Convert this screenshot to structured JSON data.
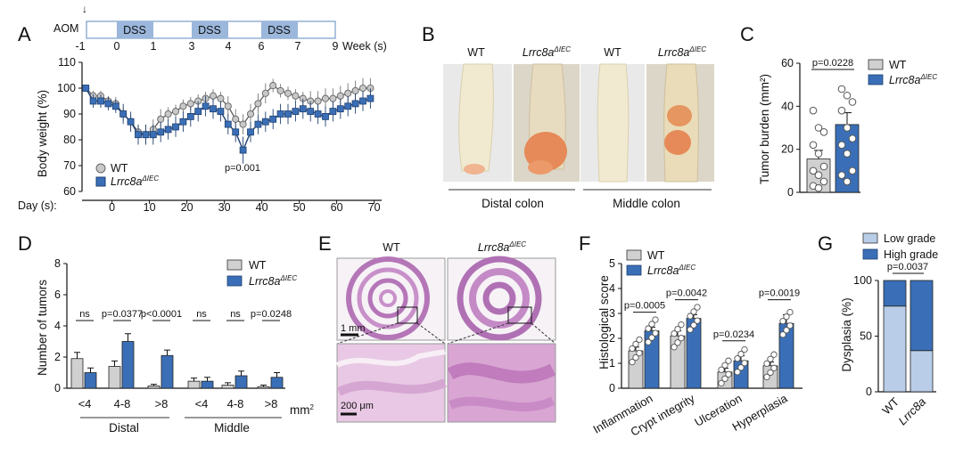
{
  "colors": {
    "wt": "#d0d0d0",
    "ko": "#3a6fb7",
    "wt_pt": "#b8b8b8",
    "ko_pt": "#3a6fb7",
    "dss": "#9bb7db",
    "low": "#b9cde8",
    "high": "#3a6fb7",
    "tissue_bg": "#f2f2f2"
  },
  "panels": {
    "A": "A",
    "B": "B",
    "C": "C",
    "D": "D",
    "E": "E",
    "F": "F",
    "G": "G"
  },
  "schedule": {
    "aom": "AOM",
    "dss": "DSS",
    "week_ticks": [
      "-1",
      "0",
      "1",
      "3",
      "4",
      "6",
      "7",
      "9"
    ],
    "week_label": "Week (s)"
  },
  "legend": {
    "wt": "WT",
    "ko": "Lrrc8a",
    "ko_sup": "ΔIEC"
  },
  "chart_data": [
    {
      "panel": "A",
      "type": "line",
      "ylabel": "Body weight (%)",
      "xlabel": "Day (s):",
      "ylim": [
        60,
        110
      ],
      "yticks": [
        "60",
        "70",
        "80",
        "90",
        "100",
        "110"
      ],
      "xlim": [
        -8,
        72
      ],
      "xticks": [
        "0",
        "10",
        "20",
        "30",
        "40",
        "50",
        "60",
        "70"
      ],
      "xtick_values": [
        0,
        10,
        20,
        30,
        40,
        50,
        60,
        70
      ],
      "annotation": "p=0.001",
      "series": [
        {
          "name": "WT",
          "x": [
            -7,
            -5,
            -3,
            -1,
            1,
            3,
            5,
            7,
            9,
            11,
            13,
            15,
            17,
            19,
            21,
            23,
            25,
            27,
            29,
            31,
            33,
            35,
            37,
            39,
            41,
            43,
            45,
            47,
            49,
            51,
            53,
            55,
            57,
            59,
            61,
            63,
            65,
            67,
            69
          ],
          "y": [
            100,
            97,
            97,
            95,
            94,
            90,
            87,
            83,
            82,
            84,
            88,
            90,
            91,
            93,
            94,
            95,
            96,
            97,
            96,
            93,
            88,
            86,
            90,
            94,
            98,
            101,
            99,
            98,
            97,
            96,
            95,
            95,
            96,
            96,
            97,
            98,
            99,
            100,
            100
          ],
          "err": [
            1,
            1.5,
            1.5,
            1.5,
            2,
            2,
            2,
            2,
            3,
            3,
            3,
            2,
            2,
            2,
            2,
            2,
            2,
            2,
            2,
            3,
            3,
            3,
            3,
            3,
            3,
            2,
            2,
            2,
            2,
            2,
            3,
            3,
            3,
            3,
            3,
            3,
            3,
            3,
            3
          ]
        },
        {
          "name": "Lrrc8a",
          "x": [
            -7,
            -5,
            -3,
            -1,
            1,
            3,
            5,
            7,
            9,
            11,
            13,
            15,
            17,
            19,
            21,
            23,
            25,
            27,
            29,
            31,
            33,
            35,
            37,
            39,
            41,
            43,
            45,
            47,
            49,
            51,
            53,
            55,
            57,
            59,
            61,
            63,
            65,
            67,
            69
          ],
          "y": [
            100,
            95,
            95,
            94,
            93,
            90,
            87,
            82,
            82,
            82,
            83,
            84,
            85,
            87,
            89,
            91,
            93,
            92,
            91,
            86,
            83,
            76,
            83,
            86,
            87,
            88,
            90,
            90,
            91,
            92,
            91,
            90,
            89,
            91,
            92,
            93,
            94,
            95,
            96
          ],
          "err": [
            1,
            2,
            2,
            2,
            2,
            3,
            3,
            3,
            3,
            3,
            3,
            3,
            3,
            3,
            3,
            3,
            3,
            3,
            3,
            3,
            3,
            4,
            3,
            3,
            3,
            3,
            3,
            3,
            3,
            3,
            3,
            3,
            3,
            3,
            3,
            3,
            3,
            3,
            3
          ]
        }
      ]
    },
    {
      "panel": "C",
      "type": "bar",
      "ylabel": "Tumor burden (mm²)",
      "ylim": [
        0,
        60
      ],
      "yticks": [
        "0",
        "20",
        "40",
        "60"
      ],
      "categories": [
        "WT",
        "Lrrc8a"
      ],
      "values": [
        15.5,
        31.5
      ],
      "err": [
        4,
        5.5
      ],
      "points": [
        [
          38,
          30,
          28,
          22,
          18,
          12,
          10,
          8,
          5,
          3,
          2
        ],
        [
          48,
          45,
          42,
          38,
          30,
          25,
          22,
          18,
          10,
          8,
          5
        ]
      ],
      "annotation": "p=0.0228"
    },
    {
      "panel": "D",
      "type": "bar",
      "ylabel": "Number of tumors",
      "ylim": [
        0,
        8
      ],
      "yticks": [
        "0",
        "2",
        "4",
        "6",
        "8"
      ],
      "categories": [
        "<4",
        "4-8",
        ">8",
        "<4",
        "4-8",
        ">8"
      ],
      "groups": [
        "Distal",
        "Middle"
      ],
      "unit": "mm",
      "unit_sup": "2",
      "series": [
        {
          "name": "WT",
          "values": [
            1.9,
            1.4,
            0.15,
            0.45,
            0.2,
            0.1
          ],
          "err": [
            0.4,
            0.35,
            0.1,
            0.2,
            0.15,
            0.1
          ]
        },
        {
          "name": "Lrrc8a",
          "values": [
            1.0,
            3.0,
            2.1,
            0.45,
            0.8,
            0.7
          ],
          "err": [
            0.3,
            0.5,
            0.35,
            0.25,
            0.3,
            0.3
          ]
        }
      ],
      "pvalues": [
        "ns",
        "p=0.0377",
        "p<0.0001",
        "ns",
        "ns",
        "p=0.0248"
      ]
    },
    {
      "panel": "F",
      "type": "bar",
      "ylabel": "Histological score",
      "ylim": [
        0,
        5
      ],
      "yticks": [
        "0",
        "1",
        "2",
        "3",
        "4",
        "5"
      ],
      "categories": [
        "Inflammation",
        "Crypt integrity",
        "Ulceration",
        "Hyperplasia"
      ],
      "series": [
        {
          "name": "WT",
          "values": [
            1.5,
            2.1,
            0.65,
            0.9
          ],
          "err": [
            0.15,
            0.2,
            0.15,
            0.15
          ]
        },
        {
          "name": "Lrrc8a",
          "values": [
            2.3,
            2.8,
            1.1,
            2.6
          ],
          "err": [
            0.15,
            0.15,
            0.2,
            0.35
          ]
        }
      ],
      "pvalues": [
        "p=0.0005",
        "p=0.0042",
        "p=0.0234",
        "p=0.0019"
      ]
    },
    {
      "panel": "G",
      "type": "bar",
      "ylabel": "Dysplasia (%)",
      "ylim": [
        0,
        100
      ],
      "yticks": [
        "0",
        "50",
        "100"
      ],
      "categories": [
        "WT",
        "Lrrc8a"
      ],
      "series": [
        {
          "name": "Low grade",
          "values": [
            77,
            37
          ]
        },
        {
          "name": "High grade",
          "values": [
            23,
            63
          ]
        }
      ],
      "annotation": "p=0.0037"
    }
  ],
  "panelB": {
    "wt": "WT",
    "ko": "Lrrc8a",
    "ko_sup": "ΔIEC",
    "distal": "Distal colon",
    "middle": "Middle colon"
  },
  "panelE": {
    "wt": "WT",
    "ko": "Lrrc8a",
    "ko_sup": "ΔIEC",
    "scale1": "1 mm",
    "scale2": "200 μm"
  }
}
